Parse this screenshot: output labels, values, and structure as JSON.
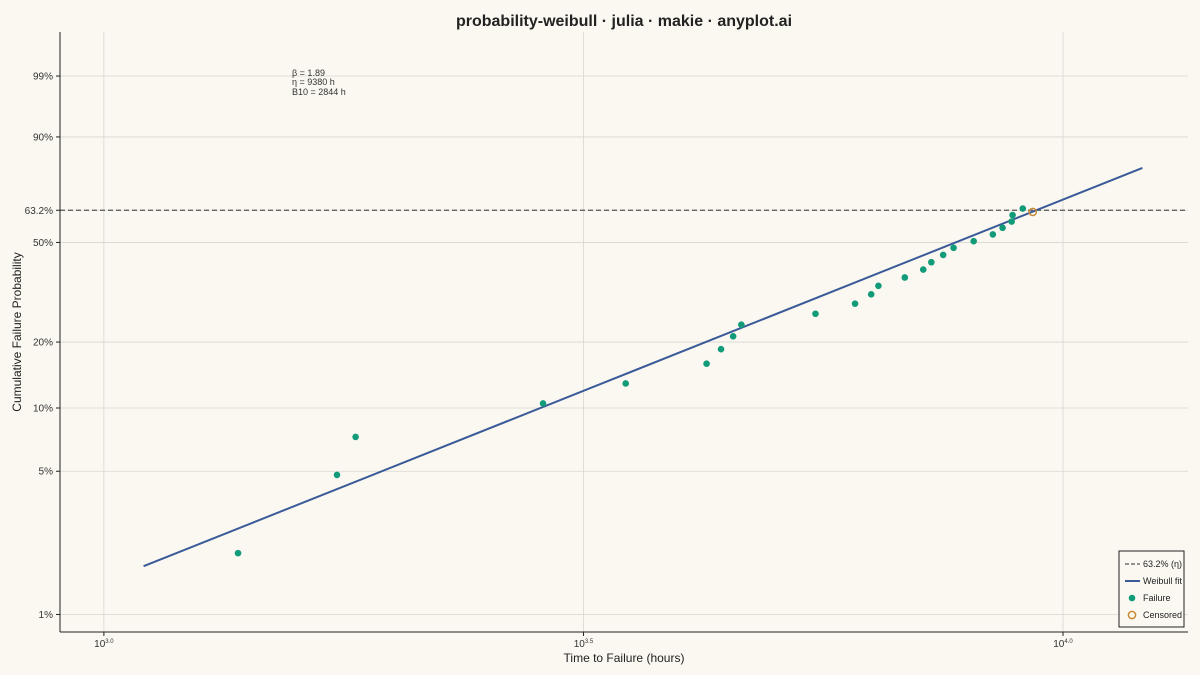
{
  "chart_data": {
    "type": "scatter",
    "title": "probability-weibull · julia · makie · anyplot.ai",
    "xlabel": "Time to Failure (hours)",
    "ylabel": "Cumulative Failure Probability",
    "x_scale": "log10",
    "y_scale": "weibull",
    "xlim": [
      900,
      13500
    ],
    "ylim": [
      0.0082,
      0.9995
    ],
    "x_ticks": [
      {
        "value": 1000,
        "base": "10",
        "exp": "3.0"
      },
      {
        "value": 3162.28,
        "base": "10",
        "exp": "3.5"
      },
      {
        "value": 10000,
        "base": "10",
        "exp": "4.0"
      }
    ],
    "y_ticks": [
      {
        "value": 0.01,
        "label": "1%"
      },
      {
        "value": 0.05,
        "label": "5%"
      },
      {
        "value": 0.1,
        "label": "10%"
      },
      {
        "value": 0.2,
        "label": "20%"
      },
      {
        "value": 0.5,
        "label": "50%"
      },
      {
        "value": 0.632,
        "label": "63.2%"
      },
      {
        "value": 0.9,
        "label": "90%"
      },
      {
        "value": 0.99,
        "label": "99%"
      }
    ],
    "grid": true,
    "annotation": [
      "β = 1.89",
      "η = 9380 h",
      "B10 = 2844 h"
    ],
    "reference_line": {
      "name": "63.2% (η)",
      "y": 0.632,
      "color": "#555555",
      "style": "dashed"
    },
    "fit": {
      "name": "Weibull fit",
      "beta": 1.89,
      "eta": 9380,
      "x_range": [
        1100,
        12100
      ],
      "color": "#3a5a98"
    },
    "series": [
      {
        "name": "Failure",
        "color": "#129b78",
        "points": [
          {
            "x": 1380,
            "y": 0.02
          },
          {
            "x": 1750,
            "y": 0.048
          },
          {
            "x": 1830,
            "y": 0.073
          },
          {
            "x": 2870,
            "y": 0.105
          },
          {
            "x": 3500,
            "y": 0.13
          },
          {
            "x": 4250,
            "y": 0.16
          },
          {
            "x": 4400,
            "y": 0.186
          },
          {
            "x": 4530,
            "y": 0.212
          },
          {
            "x": 4620,
            "y": 0.238
          },
          {
            "x": 5520,
            "y": 0.265
          },
          {
            "x": 6070,
            "y": 0.292
          },
          {
            "x": 6310,
            "y": 0.319
          },
          {
            "x": 6420,
            "y": 0.345
          },
          {
            "x": 6840,
            "y": 0.372
          },
          {
            "x": 7150,
            "y": 0.399
          },
          {
            "x": 7290,
            "y": 0.425
          },
          {
            "x": 7500,
            "y": 0.452
          },
          {
            "x": 7690,
            "y": 0.479
          },
          {
            "x": 8070,
            "y": 0.505
          },
          {
            "x": 8450,
            "y": 0.532
          },
          {
            "x": 8650,
            "y": 0.559
          },
          {
            "x": 8840,
            "y": 0.585
          },
          {
            "x": 8860,
            "y": 0.612
          },
          {
            "x": 9080,
            "y": 0.639
          }
        ]
      },
      {
        "name": "Censored",
        "color": "#c88a35",
        "hollow": true,
        "points": [
          {
            "x": 9300,
            "y": 0.625
          }
        ]
      }
    ],
    "legend": {
      "position": "bottom-right",
      "entries": [
        {
          "label": "63.2% (η)",
          "kind": "dashed-line",
          "color": "#555555"
        },
        {
          "label": "Weibull fit",
          "kind": "line",
          "color": "#3a5a98"
        },
        {
          "label": "Failure",
          "kind": "dot",
          "color": "#129b78"
        },
        {
          "label": "Censored",
          "kind": "ring",
          "color": "#c88a35"
        }
      ]
    }
  }
}
